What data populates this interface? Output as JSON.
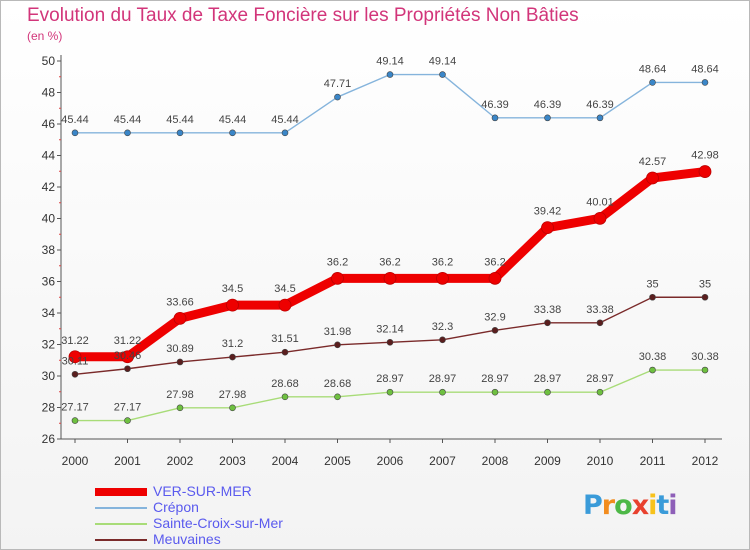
{
  "title": "Evolution du Taux de Taxe Foncière sur les Propriétés Non Bâties",
  "unit_label": "(en %)",
  "logo": {
    "letters": [
      "P",
      "r",
      "o",
      "x",
      "i",
      "t",
      "i"
    ],
    "colors": [
      "#3a9bd9",
      "#f28c1e",
      "#4db847",
      "#e8412e",
      "#f7c21b",
      "#3a9bd9",
      "#8e5fb8"
    ]
  },
  "chart_data": {
    "type": "line",
    "title": "Evolution du Taux de Taxe Foncière sur les Propriétés Non Bâties",
    "ylabel": "(en %)",
    "xlabel": "",
    "x": [
      "2000",
      "2001",
      "2002",
      "2003",
      "2004",
      "2005",
      "2006",
      "2007",
      "2008",
      "2009",
      "2010",
      "2011",
      "2012"
    ],
    "ylim": [
      26,
      50
    ],
    "yticks": [
      26,
      28,
      30,
      32,
      34,
      36,
      38,
      40,
      42,
      44,
      46,
      48,
      50
    ],
    "grid": false,
    "legend_position": "bottom-left",
    "series": [
      {
        "name": "VER-SUR-MER",
        "color": "#ee0000",
        "marker_color": "#ee0000",
        "emphasis": true,
        "values": [
          31.22,
          31.22,
          33.66,
          34.5,
          34.5,
          36.2,
          36.2,
          36.2,
          36.2,
          39.42,
          40.01,
          42.57,
          42.98
        ],
        "labels": [
          "31.22",
          "31.22",
          "33.66",
          "34.5",
          "34.5",
          "36.2",
          "36.2",
          "36.2",
          "36.2",
          "39.42",
          "40.01",
          "42.57",
          "42.98"
        ]
      },
      {
        "name": "Crépon",
        "color": "#85b4dc",
        "marker_color": "#3a86c8",
        "emphasis": false,
        "values": [
          45.44,
          45.44,
          45.44,
          45.44,
          45.44,
          47.71,
          49.14,
          49.14,
          46.39,
          46.39,
          46.39,
          48.64,
          48.64
        ],
        "labels": [
          "45.44",
          "45.44",
          "45.44",
          "45.44",
          "45.44",
          "47.71",
          "49.14",
          "49.14",
          "46.39",
          "46.39",
          "46.39",
          "48.64",
          "48.64"
        ]
      },
      {
        "name": "Sainte-Croix-sur-Mer",
        "color": "#a8dc78",
        "marker_color": "#6ec040",
        "emphasis": false,
        "values": [
          27.17,
          27.17,
          27.98,
          27.98,
          28.68,
          28.68,
          28.97,
          28.97,
          28.97,
          28.97,
          28.97,
          30.38,
          30.38
        ],
        "labels": [
          "27.17",
          "27.17",
          "27.98",
          "27.98",
          "28.68",
          "28.68",
          "28.97",
          "28.97",
          "28.97",
          "28.97",
          "28.97",
          "30.38",
          "30.38"
        ]
      },
      {
        "name": "Meuvaines",
        "color": "#7a2a2a",
        "marker_color": "#5a1e1e",
        "emphasis": false,
        "values": [
          30.11,
          30.46,
          30.89,
          31.2,
          31.51,
          31.98,
          32.14,
          32.3,
          32.9,
          33.38,
          33.38,
          35,
          35
        ],
        "labels": [
          "30.11",
          "30.46",
          "30.89",
          "31.2",
          "31.51",
          "31.98",
          "32.14",
          "32.3",
          "32.9",
          "33.38",
          "33.38",
          "35",
          "35"
        ]
      }
    ]
  }
}
